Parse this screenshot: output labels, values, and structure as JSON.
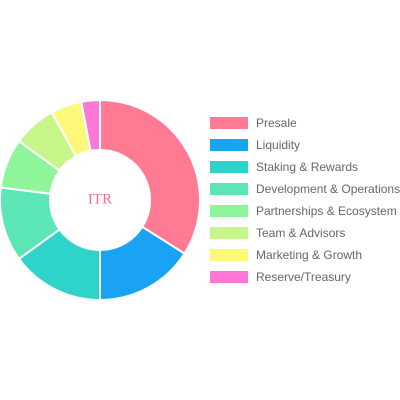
{
  "chart_data": {
    "type": "pie",
    "center_label": "ITR",
    "center_label_color": "#f26b8a",
    "legend_position": "right",
    "categories": [
      "Presale",
      "Liquidity",
      "Staking & Rewards",
      "Development & Operations",
      "Partnerships & Ecosystem",
      "Team & Advisors",
      "Marketing & Growth",
      "Reserve/Treasury"
    ],
    "values": [
      34,
      16,
      15,
      12,
      8,
      7,
      5,
      3
    ],
    "colors": [
      "#ff7a93",
      "#1aa3f5",
      "#2ed3c9",
      "#5ce6b5",
      "#8ef59a",
      "#c6f58a",
      "#fdf77a",
      "#ff77d6"
    ]
  }
}
